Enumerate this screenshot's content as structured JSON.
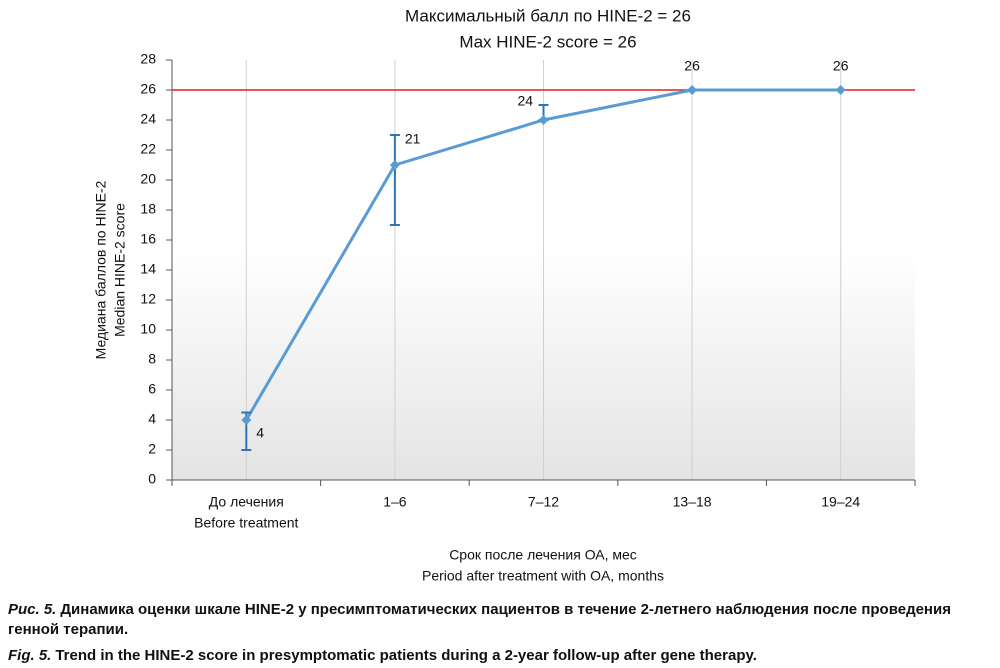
{
  "chart_data": {
    "type": "line",
    "title": [
      "Максимальный балл по HINE-2 = 26",
      "Max HINE-2 score = 26"
    ],
    "x_label": [
      "Срок после лечения ОА, мес",
      "Period after treatment with OA, months"
    ],
    "y_label": [
      "Медиана баллов по HINE-2",
      "Median HINE-2 score"
    ],
    "categories": [
      [
        "До лечения",
        "Before treatment"
      ],
      [
        "1–6"
      ],
      [
        "7–12"
      ],
      [
        "13–18"
      ],
      [
        "19–24"
      ]
    ],
    "series": [
      {
        "color": "#5b9bd5",
        "error_color": "#2e75b6",
        "values": [
          4,
          21,
          24,
          26,
          26
        ],
        "error_bars": [
          {
            "low": 2,
            "high": 4.5
          },
          {
            "low": 17,
            "high": 23
          },
          {
            "low": 24,
            "high": 25
          },
          null,
          null
        ]
      }
    ],
    "reference_line": {
      "value": 26,
      "color": "#e02020"
    },
    "ylim": [
      0,
      28
    ],
    "yticks": [
      0,
      2,
      4,
      6,
      8,
      10,
      12,
      14,
      16,
      18,
      20,
      22,
      24,
      26,
      28
    ]
  },
  "captions": [
    {
      "label": "Рис. 5.",
      "text": "Динамика оценки шкале HINE-2 у пресимптоматических пациентов в течение 2-летнего наблюдения после проведения генной терапии."
    },
    {
      "label": "Fig. 5.",
      "text": "Trend in the HINE-2 score in presymptomatic patients during a 2-year follow-up after gene therapy."
    }
  ]
}
